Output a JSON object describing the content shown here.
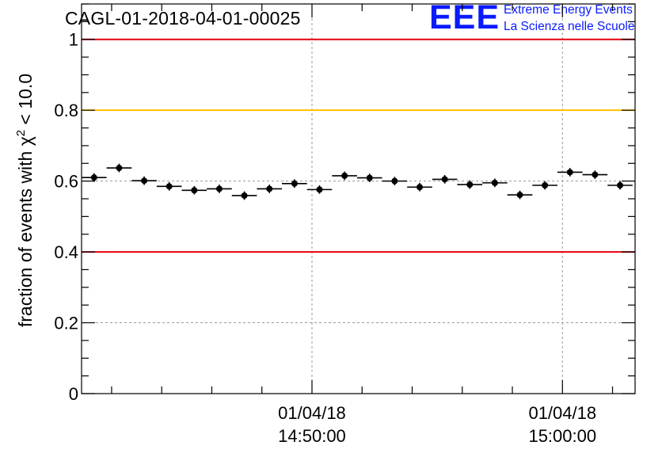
{
  "title": "CAGL-01-2018-04-01-00025",
  "logo": {
    "mark": "EEE",
    "line1": "Extreme Energy Events",
    "line2": "La Scienza nelle Scuole",
    "color": "#0a1bff"
  },
  "chart_data": {
    "type": "scatter",
    "title": "CAGL-01-2018-04-01-00025",
    "ylabel": "fraction of events with χ² < 10.0",
    "ylabel_parts": {
      "prefix": "fraction of events with ",
      "symbol": "χ",
      "superscript": "2",
      "suffix": " < 10.0"
    },
    "xlabel": "",
    "ylim": [
      0,
      1.1
    ],
    "xlim_minutes": [
      -9.2,
      12.9
    ],
    "grid": true,
    "y_ticks": [
      {
        "value": 0,
        "label": "0"
      },
      {
        "value": 0.2,
        "label": "0.2"
      },
      {
        "value": 0.4,
        "label": "0.4"
      },
      {
        "value": 0.6,
        "label": "0.6"
      },
      {
        "value": 0.8,
        "label": "0.8"
      },
      {
        "value": 1,
        "label": "1"
      }
    ],
    "x_ticks": [
      {
        "minute": 0,
        "date": "01/04/18",
        "time": "14:50:00"
      },
      {
        "minute": 10,
        "date": "01/04/18",
        "time": "15:00:00"
      }
    ],
    "reference_lines": [
      {
        "y": 1.0,
        "color": "#e8000b"
      },
      {
        "y": 0.8,
        "color": "#ffc000"
      },
      {
        "y": 0.4,
        "color": "#e8000b"
      }
    ],
    "bin_width_minutes": 1,
    "series": [
      {
        "color": "#000000",
        "points": [
          {
            "x": -8.7,
            "y": 0.61,
            "err": 0.012
          },
          {
            "x": -7.7,
            "y": 0.637,
            "err": 0.012
          },
          {
            "x": -6.7,
            "y": 0.601,
            "err": 0.012
          },
          {
            "x": -5.7,
            "y": 0.585,
            "err": 0.012
          },
          {
            "x": -4.7,
            "y": 0.574,
            "err": 0.012
          },
          {
            "x": -3.7,
            "y": 0.578,
            "err": 0.012
          },
          {
            "x": -2.7,
            "y": 0.559,
            "err": 0.012
          },
          {
            "x": -1.7,
            "y": 0.578,
            "err": 0.012
          },
          {
            "x": -0.7,
            "y": 0.593,
            "err": 0.012
          },
          {
            "x": 0.3,
            "y": 0.576,
            "err": 0.012
          },
          {
            "x": 1.3,
            "y": 0.615,
            "err": 0.012
          },
          {
            "x": 2.3,
            "y": 0.609,
            "err": 0.012
          },
          {
            "x": 3.3,
            "y": 0.6,
            "err": 0.012
          },
          {
            "x": 4.3,
            "y": 0.583,
            "err": 0.012
          },
          {
            "x": 5.3,
            "y": 0.605,
            "err": 0.012
          },
          {
            "x": 6.3,
            "y": 0.59,
            "err": 0.012
          },
          {
            "x": 7.3,
            "y": 0.595,
            "err": 0.012
          },
          {
            "x": 8.3,
            "y": 0.561,
            "err": 0.012
          },
          {
            "x": 9.3,
            "y": 0.588,
            "err": 0.012
          },
          {
            "x": 10.3,
            "y": 0.625,
            "err": 0.012
          },
          {
            "x": 11.3,
            "y": 0.618,
            "err": 0.012
          },
          {
            "x": 12.3,
            "y": 0.588,
            "err": 0.012
          }
        ]
      }
    ]
  }
}
